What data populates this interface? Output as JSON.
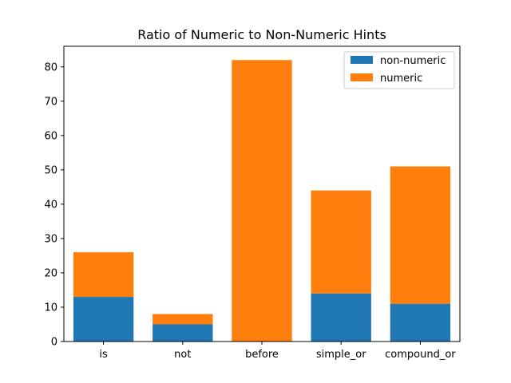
{
  "chart_data": {
    "type": "bar",
    "stacked": true,
    "title": "Ratio of Numeric to Non-Numeric Hints",
    "xlabel": "",
    "ylabel": "",
    "categories": [
      "is",
      "not",
      "before",
      "simple_or",
      "compound_or"
    ],
    "series": [
      {
        "name": "non-numeric",
        "color": "#1f77b4",
        "values": [
          13,
          5,
          0,
          14,
          11
        ]
      },
      {
        "name": "numeric",
        "color": "#ff7f0e",
        "values": [
          13,
          3,
          82,
          30,
          40
        ]
      }
    ],
    "ylim": [
      0,
      86
    ],
    "yticks": [
      0,
      10,
      20,
      30,
      40,
      50,
      60,
      70,
      80
    ],
    "grid": false,
    "legend_position": "top-right"
  }
}
